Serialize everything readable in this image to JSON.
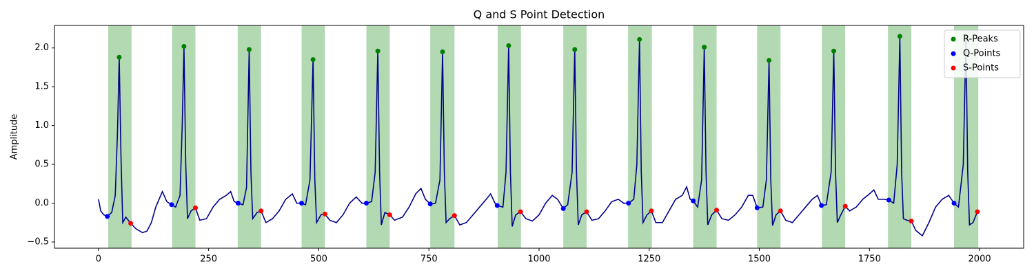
{
  "chart_data": {
    "type": "line",
    "title": "Q and S Point Detection",
    "ylabel": "Amplitude",
    "xlim": [
      -100,
      2100
    ],
    "ylim": [
      -0.58,
      2.29
    ],
    "xticks": [
      0,
      250,
      500,
      750,
      1000,
      1250,
      1500,
      1750,
      2000
    ],
    "yticks": [
      {
        "value": -0.5,
        "label": "−0.5"
      },
      {
        "value": 0,
        "label": "0.0"
      },
      0.5,
      {
        "value": 1,
        "label": "1.0"
      },
      1.5,
      {
        "value": 2,
        "label": "2.0"
      }
    ],
    "legend": "upper right",
    "region_color": "green",
    "region_alpha": 0.3,
    "regions": [
      [
        22,
        75
      ],
      [
        167,
        220
      ],
      [
        316,
        369
      ],
      [
        461,
        514
      ],
      [
        608,
        661
      ],
      [
        753,
        808
      ],
      [
        906,
        959
      ],
      [
        1055,
        1108
      ],
      [
        1202,
        1256
      ],
      [
        1350,
        1403
      ],
      [
        1495,
        1548
      ],
      [
        1642,
        1695
      ],
      [
        1792,
        1845
      ],
      [
        1942,
        1997
      ]
    ],
    "signal": {
      "color": "#00008b",
      "x": [
        0,
        5,
        12,
        20,
        30,
        38,
        43,
        47,
        51,
        55,
        62,
        73,
        85,
        100,
        110,
        120,
        130,
        145,
        155,
        166,
        175,
        185,
        190,
        194,
        198,
        202,
        210,
        220,
        230,
        245,
        260,
        275,
        290,
        300,
        308,
        317,
        328,
        336,
        342,
        346,
        350,
        360,
        369,
        380,
        395,
        410,
        425,
        440,
        450,
        461,
        470,
        480,
        487,
        491,
        495,
        505,
        514,
        525,
        540,
        555,
        570,
        585,
        598,
        608,
        620,
        628,
        634,
        638,
        642,
        650,
        661,
        672,
        690,
        705,
        720,
        732,
        742,
        753,
        765,
        775,
        781,
        785,
        789,
        797,
        808,
        820,
        835,
        850,
        865,
        880,
        890,
        900,
        905,
        918,
        925,
        931,
        935,
        939,
        947,
        958,
        970,
        985,
        1000,
        1015,
        1030,
        1042,
        1055,
        1065,
        1075,
        1081,
        1085,
        1089,
        1097,
        1108,
        1120,
        1135,
        1150,
        1165,
        1180,
        1192,
        1203,
        1215,
        1222,
        1228,
        1232,
        1236,
        1245,
        1255,
        1265,
        1280,
        1295,
        1310,
        1325,
        1335,
        1343,
        1350,
        1360,
        1369,
        1375,
        1379,
        1383,
        1392,
        1403,
        1415,
        1430,
        1445,
        1460,
        1475,
        1485,
        1495,
        1508,
        1516,
        1522,
        1526,
        1530,
        1538,
        1548,
        1560,
        1575,
        1590,
        1605,
        1620,
        1632,
        1641,
        1652,
        1663,
        1669,
        1673,
        1677,
        1685,
        1695,
        1705,
        1720,
        1735,
        1750,
        1760,
        1770,
        1782,
        1794,
        1805,
        1813,
        1819,
        1823,
        1827,
        1835,
        1845,
        1855,
        1870,
        1885,
        1900,
        1915,
        1930,
        1942,
        1952,
        1963,
        1969,
        1973,
        1977,
        1985,
        1995,
        2000
      ],
      "values": [
        0.05,
        -0.1,
        -0.15,
        -0.17,
        -0.12,
        0.1,
        0.9,
        1.88,
        0.6,
        -0.25,
        -0.18,
        -0.26,
        -0.33,
        -0.38,
        -0.36,
        -0.25,
        -0.05,
        0.15,
        0.02,
        -0.02,
        -0.05,
        0.1,
        1.0,
        2.02,
        0.5,
        -0.2,
        -0.1,
        -0.06,
        -0.22,
        -0.2,
        -0.05,
        0.05,
        0.1,
        0.15,
        0.02,
        0.0,
        -0.02,
        0.2,
        1.98,
        0.4,
        -0.2,
        -0.12,
        -0.1,
        -0.25,
        -0.2,
        -0.1,
        0.05,
        0.12,
        0.0,
        0.0,
        -0.02,
        0.3,
        1.85,
        0.3,
        -0.25,
        -0.15,
        -0.14,
        -0.22,
        -0.25,
        -0.15,
        0.0,
        0.08,
        0.0,
        0.0,
        0.02,
        0.4,
        1.96,
        0.4,
        -0.28,
        -0.12,
        -0.15,
        -0.22,
        -0.18,
        -0.05,
        0.12,
        0.19,
        0.05,
        -0.01,
        0.0,
        0.3,
        1.95,
        0.4,
        -0.25,
        -0.2,
        -0.16,
        -0.28,
        -0.25,
        -0.15,
        -0.05,
        0.05,
        0.12,
        0.0,
        -0.03,
        -0.05,
        0.4,
        2.03,
        0.4,
        -0.3,
        -0.15,
        -0.11,
        -0.2,
        -0.23,
        -0.15,
        0.0,
        0.1,
        0.05,
        -0.07,
        -0.02,
        0.4,
        1.98,
        0.4,
        -0.28,
        -0.15,
        -0.11,
        -0.22,
        -0.2,
        -0.1,
        0.02,
        0.05,
        0.0,
        0.0,
        0.05,
        0.5,
        2.11,
        0.4,
        -0.25,
        -0.15,
        -0.1,
        -0.25,
        -0.25,
        -0.1,
        0.05,
        0.1,
        0.21,
        0.05,
        0.03,
        -0.05,
        0.3,
        2.01,
        0.4,
        -0.28,
        -0.15,
        -0.09,
        -0.2,
        -0.22,
        -0.15,
        -0.05,
        0.1,
        0.1,
        -0.06,
        -0.05,
        0.3,
        1.84,
        0.3,
        -0.29,
        -0.15,
        -0.1,
        -0.22,
        -0.25,
        -0.15,
        -0.05,
        0.05,
        0.1,
        -0.03,
        -0.02,
        0.4,
        1.96,
        0.4,
        -0.25,
        -0.15,
        -0.04,
        -0.1,
        -0.05,
        0.05,
        0.12,
        0.17,
        0.05,
        0.05,
        0.04,
        0.0,
        0.5,
        2.15,
        0.4,
        -0.2,
        -0.22,
        -0.23,
        -0.35,
        -0.42,
        -0.25,
        -0.05,
        0.05,
        0.1,
        0.0,
        -0.05,
        0.5,
        2.14,
        0.4,
        -0.28,
        -0.25,
        -0.11,
        -0.1
      ]
    },
    "series": [
      {
        "name": "R-Peaks",
        "color": "green",
        "x": [
          47,
          194,
          342,
          487,
          634,
          781,
          931,
          1081,
          1228,
          1375,
          1522,
          1669,
          1819,
          1969
        ],
        "values": [
          1.88,
          2.02,
          1.98,
          1.85,
          1.96,
          1.95,
          2.03,
          1.98,
          2.11,
          2.01,
          1.84,
          1.96,
          2.15,
          2.14
        ]
      },
      {
        "name": "Q-Points",
        "color": "blue",
        "x": [
          20,
          166,
          317,
          461,
          608,
          753,
          905,
          1055,
          1203,
          1350,
          1495,
          1641,
          1794,
          1942
        ],
        "values": [
          -0.17,
          -0.02,
          0.0,
          0.0,
          0.0,
          -0.01,
          -0.03,
          -0.07,
          0.0,
          0.03,
          -0.06,
          -0.03,
          0.04,
          0.0
        ]
      },
      {
        "name": "S-Points",
        "color": "red",
        "x": [
          73,
          220,
          369,
          514,
          661,
          808,
          958,
          1108,
          1255,
          1403,
          1548,
          1695,
          1845,
          1995
        ],
        "values": [
          -0.26,
          -0.06,
          -0.1,
          -0.14,
          -0.15,
          -0.16,
          -0.11,
          -0.11,
          -0.1,
          -0.09,
          -0.1,
          -0.04,
          -0.23,
          -0.11
        ]
      }
    ]
  }
}
